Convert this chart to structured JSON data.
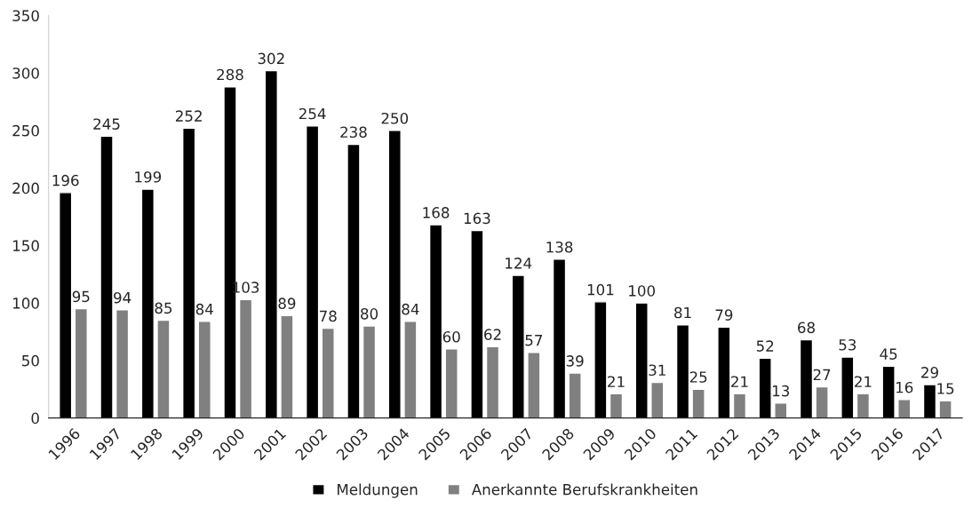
{
  "chart_data": {
    "type": "bar",
    "categories": [
      "1996",
      "1997",
      "1998",
      "1999",
      "2000",
      "2001",
      "2002",
      "2003",
      "2004",
      "2005",
      "2006",
      "2007",
      "2008",
      "2009",
      "2010",
      "2011",
      "2012",
      "2013",
      "2014",
      "2015",
      "2016",
      "2017"
    ],
    "series": [
      {
        "name": "Meldungen",
        "color": "#000000",
        "values": [
          196,
          245,
          199,
          252,
          288,
          302,
          254,
          238,
          250,
          168,
          163,
          124,
          138,
          101,
          100,
          81,
          79,
          52,
          68,
          53,
          45,
          29
        ]
      },
      {
        "name": "Anerkannte Berufskrankheiten",
        "color": "#808080",
        "values": [
          95,
          94,
          85,
          84,
          103,
          89,
          78,
          80,
          84,
          60,
          62,
          57,
          39,
          21,
          31,
          25,
          21,
          13,
          27,
          21,
          16,
          15
        ]
      }
    ],
    "ylim": [
      0,
      350
    ],
    "yticks": [
      0,
      50,
      100,
      150,
      200,
      250,
      300,
      350
    ],
    "data_labels": true,
    "grid": false,
    "legend": "bottom"
  }
}
